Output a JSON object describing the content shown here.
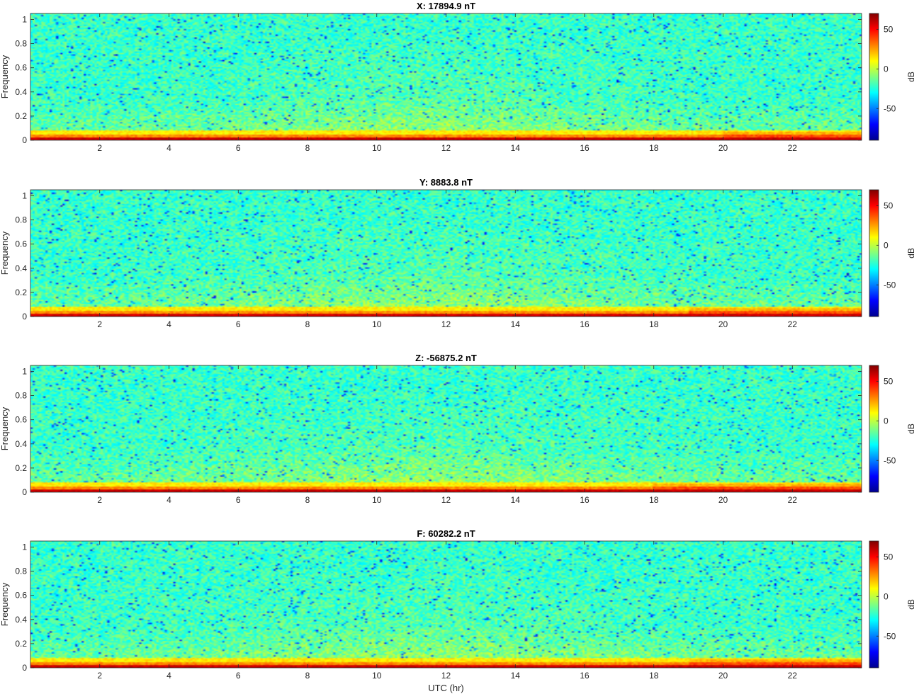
{
  "chart_data": [
    {
      "type": "heatmap",
      "title": "X: 17894.9 nT",
      "xlabel": "",
      "ylabel": "Frequency",
      "x_ticks": [
        "2",
        "4",
        "6",
        "8",
        "10",
        "12",
        "14",
        "16",
        "18",
        "20",
        "22"
      ],
      "y_ticks": [
        "0",
        "0.2",
        "0.4",
        "0.6",
        "0.8",
        "1"
      ],
      "xlim": [
        0,
        24
      ],
      "ylim": [
        0,
        1.05
      ],
      "colorbar": {
        "label": "dB",
        "ticks": [
          "50",
          "0",
          "-50"
        ],
        "range": [
          -90,
          70
        ],
        "colormap": "jet"
      },
      "low_band_warmer_hours": [
        20,
        24
      ]
    },
    {
      "type": "heatmap",
      "title": "Y: 8883.8 nT",
      "xlabel": "",
      "ylabel": "Frequency",
      "x_ticks": [
        "2",
        "4",
        "6",
        "8",
        "10",
        "12",
        "14",
        "16",
        "18",
        "20",
        "22"
      ],
      "y_ticks": [
        "0",
        "0.2",
        "0.4",
        "0.6",
        "0.8",
        "1"
      ],
      "xlim": [
        0,
        24
      ],
      "ylim": [
        0,
        1.05
      ],
      "colorbar": {
        "label": "dB",
        "ticks": [
          "50",
          "0",
          "-50"
        ],
        "range": [
          -90,
          70
        ],
        "colormap": "jet"
      },
      "low_band_warmer_hours": [
        19,
        24
      ]
    },
    {
      "type": "heatmap",
      "title": "Z: -56875.2 nT",
      "xlabel": "",
      "ylabel": "Frequency",
      "x_ticks": [
        "2",
        "4",
        "6",
        "8",
        "10",
        "12",
        "14",
        "16",
        "18",
        "20",
        "22"
      ],
      "y_ticks": [
        "0",
        "0.2",
        "0.4",
        "0.6",
        "0.8",
        "1"
      ],
      "xlim": [
        0,
        24
      ],
      "ylim": [
        0,
        1.05
      ],
      "colorbar": {
        "label": "dB",
        "ticks": [
          "50",
          "0",
          "-50"
        ],
        "range": [
          -90,
          70
        ],
        "colormap": "jet"
      },
      "low_band_warmer_hours": [
        18,
        24
      ]
    },
    {
      "type": "heatmap",
      "title": "F: 60282.2 nT",
      "xlabel": "UTC (hr)",
      "ylabel": "Frequency",
      "x_ticks": [
        "2",
        "4",
        "6",
        "8",
        "10",
        "12",
        "14",
        "16",
        "18",
        "20",
        "22"
      ],
      "y_ticks": [
        "0",
        "0.2",
        "0.4",
        "0.6",
        "0.8",
        "1"
      ],
      "xlim": [
        0,
        24
      ],
      "ylim": [
        0,
        1.05
      ],
      "colorbar": {
        "label": "dB",
        "ticks": [
          "50",
          "0",
          "-50"
        ],
        "range": [
          -90,
          70
        ],
        "colormap": "jet"
      },
      "low_band_warmer_hours": [
        19,
        24
      ]
    }
  ]
}
